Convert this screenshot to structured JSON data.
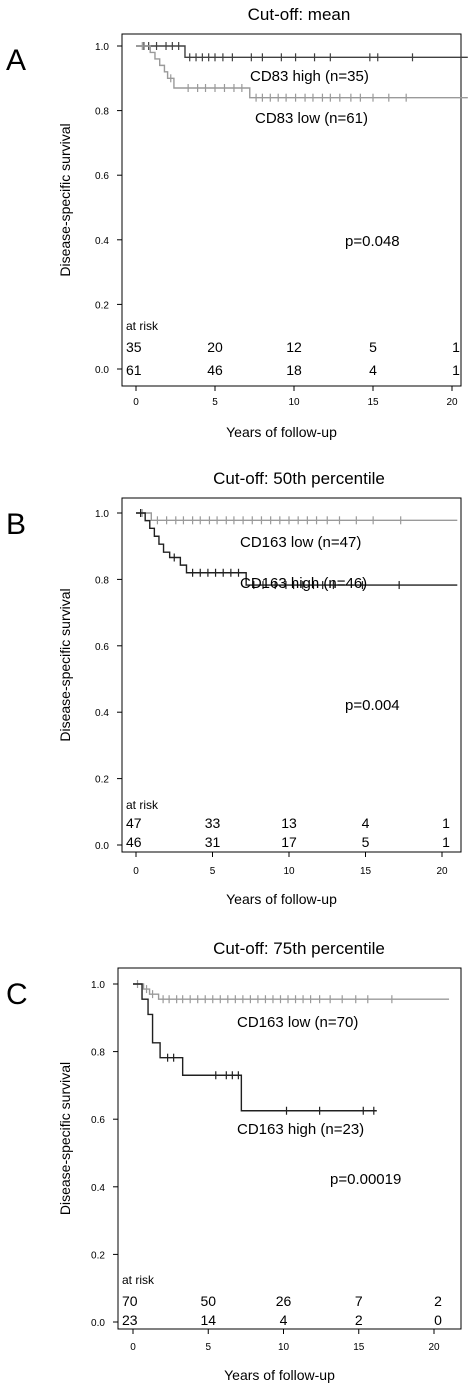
{
  "chart_data": [
    {
      "panel": "A",
      "type": "line",
      "title": "Cut-off: mean",
      "xlabel": "Years of follow-up",
      "ylabel": "Disease-specific survival",
      "xlim": [
        0,
        21
      ],
      "ylim": [
        -0.05,
        1.05
      ],
      "x_ticks": [
        0,
        5,
        10,
        15,
        20
      ],
      "y_ticks": [
        0.0,
        0.2,
        0.4,
        0.6,
        0.8,
        1.0
      ],
      "p_value": "p=0.048",
      "series": [
        {
          "name": "CD83 high (n=35)",
          "color": "#404040",
          "steps": [
            [
              0,
              1.0
            ],
            [
              3.1,
              0.965
            ],
            [
              21,
              0.965
            ]
          ],
          "censors": [
            [
              0.5,
              1.0
            ],
            [
              0.8,
              1.0
            ],
            [
              1.3,
              1.0
            ],
            [
              1.9,
              1.0
            ],
            [
              2.3,
              1.0
            ],
            [
              2.7,
              1.0
            ],
            [
              3.4,
              0.965
            ],
            [
              3.8,
              0.965
            ],
            [
              4.2,
              0.965
            ],
            [
              4.6,
              0.965
            ],
            [
              5.0,
              0.965
            ],
            [
              5.5,
              0.965
            ],
            [
              6.1,
              0.965
            ],
            [
              7.3,
              0.965
            ],
            [
              8.0,
              0.965
            ],
            [
              9.2,
              0.965
            ],
            [
              10.1,
              0.965
            ],
            [
              11.3,
              0.965
            ],
            [
              12.3,
              0.965
            ],
            [
              14.8,
              0.965
            ],
            [
              15.3,
              0.965
            ],
            [
              17.5,
              0.965
            ]
          ]
        },
        {
          "name": "CD83 low (n=61)",
          "color": "#9a9a9a",
          "steps": [
            [
              0,
              1.0
            ],
            [
              0.9,
              0.98
            ],
            [
              1.2,
              0.96
            ],
            [
              1.5,
              0.94
            ],
            [
              1.8,
              0.92
            ],
            [
              2.0,
              0.9
            ],
            [
              2.4,
              0.87
            ],
            [
              7.2,
              0.84
            ],
            [
              21,
              0.84
            ]
          ],
          "censors": [
            [
              0.4,
              1.0
            ],
            [
              2.2,
              0.9
            ],
            [
              3.3,
              0.87
            ],
            [
              3.9,
              0.87
            ],
            [
              4.4,
              0.87
            ],
            [
              5.0,
              0.87
            ],
            [
              5.6,
              0.87
            ],
            [
              6.2,
              0.87
            ],
            [
              6.7,
              0.87
            ],
            [
              7.6,
              0.84
            ],
            [
              8.0,
              0.84
            ],
            [
              8.5,
              0.84
            ],
            [
              9.0,
              0.84
            ],
            [
              9.5,
              0.84
            ],
            [
              10.1,
              0.84
            ],
            [
              10.7,
              0.84
            ],
            [
              11.2,
              0.84
            ],
            [
              11.8,
              0.84
            ],
            [
              12.3,
              0.84
            ],
            [
              12.9,
              0.84
            ],
            [
              13.6,
              0.84
            ],
            [
              14.2,
              0.84
            ],
            [
              15.0,
              0.84
            ],
            [
              16.0,
              0.84
            ],
            [
              17.1,
              0.84
            ]
          ]
        }
      ],
      "at_risk": {
        "label": "at risk",
        "times": [
          0,
          5,
          10,
          15,
          20
        ],
        "rows": [
          [
            "35",
            "20",
            "12",
            "5",
            "1"
          ],
          [
            "61",
            "46",
            "18",
            "4",
            "1"
          ]
        ]
      }
    },
    {
      "panel": "B",
      "type": "line",
      "title": "Cut-off: 50th percentile",
      "xlabel": "Years of follow-up",
      "ylabel": "Disease-specific survival",
      "xlim": [
        0,
        21
      ],
      "ylim": [
        -0.05,
        1.05
      ],
      "x_ticks": [
        0,
        5,
        10,
        15,
        20
      ],
      "y_ticks": [
        0.0,
        0.2,
        0.4,
        0.6,
        0.8,
        1.0
      ],
      "p_value": "p=0.004",
      "series": [
        {
          "name": "CD163 low (n=47)",
          "color": "#9a9a9a",
          "steps": [
            [
              0,
              1.0
            ],
            [
              1.0,
              0.978
            ],
            [
              21,
              0.978
            ]
          ],
          "censors": [
            [
              0.4,
              1.0
            ],
            [
              1.4,
              0.978
            ],
            [
              2.0,
              0.978
            ],
            [
              2.6,
              0.978
            ],
            [
              3.1,
              0.978
            ],
            [
              3.7,
              0.978
            ],
            [
              4.2,
              0.978
            ],
            [
              4.8,
              0.978
            ],
            [
              5.3,
              0.978
            ],
            [
              5.9,
              0.978
            ],
            [
              6.4,
              0.978
            ],
            [
              7.0,
              0.978
            ],
            [
              7.6,
              0.978
            ],
            [
              8.2,
              0.978
            ],
            [
              8.8,
              0.978
            ],
            [
              9.4,
              0.978
            ],
            [
              10.0,
              0.978
            ],
            [
              10.6,
              0.978
            ],
            [
              11.2,
              0.978
            ],
            [
              11.8,
              0.978
            ],
            [
              12.5,
              0.978
            ],
            [
              13.3,
              0.978
            ],
            [
              14.4,
              0.978
            ],
            [
              15.5,
              0.978
            ],
            [
              17.3,
              0.978
            ]
          ]
        },
        {
          "name": "CD163 high (n=46)",
          "color": "#202020",
          "steps": [
            [
              0,
              1.0
            ],
            [
              0.6,
              0.977
            ],
            [
              0.9,
              0.954
            ],
            [
              1.2,
              0.93
            ],
            [
              1.5,
              0.906
            ],
            [
              1.8,
              0.882
            ],
            [
              2.2,
              0.866
            ],
            [
              2.9,
              0.843
            ],
            [
              3.3,
              0.82
            ],
            [
              7.2,
              0.783
            ],
            [
              21,
              0.783
            ]
          ],
          "censors": [
            [
              0.3,
              1.0
            ],
            [
              2.5,
              0.866
            ],
            [
              3.7,
              0.82
            ],
            [
              4.2,
              0.82
            ],
            [
              4.7,
              0.82
            ],
            [
              5.2,
              0.82
            ],
            [
              5.7,
              0.82
            ],
            [
              6.2,
              0.82
            ],
            [
              6.7,
              0.82
            ],
            [
              7.7,
              0.783
            ],
            [
              8.3,
              0.783
            ],
            [
              9.1,
              0.783
            ],
            [
              9.8,
              0.783
            ],
            [
              10.3,
              0.783
            ],
            [
              10.9,
              0.783
            ],
            [
              11.6,
              0.783
            ],
            [
              12.2,
              0.783
            ],
            [
              12.9,
              0.783
            ],
            [
              14.8,
              0.783
            ],
            [
              17.2,
              0.783
            ]
          ]
        }
      ],
      "at_risk": {
        "label": "at risk",
        "times": [
          0,
          5,
          10,
          15,
          20
        ],
        "rows": [
          [
            "47",
            "33",
            "13",
            "4",
            "1"
          ],
          [
            "46",
            "31",
            "17",
            "5",
            "1"
          ]
        ]
      }
    },
    {
      "panel": "C",
      "type": "line",
      "title": "Cut-off: 75th percentile",
      "xlabel": "Years of follow-up",
      "ylabel": "Disease-specific survival",
      "xlim": [
        0,
        21
      ],
      "ylim": [
        -0.05,
        1.05
      ],
      "x_ticks": [
        0,
        5,
        10,
        15,
        20
      ],
      "y_ticks": [
        0.0,
        0.2,
        0.4,
        0.6,
        0.8,
        1.0
      ],
      "p_value": "p=0.00019",
      "series": [
        {
          "name": "CD163 low (n=70)",
          "color": "#9a9a9a",
          "steps": [
            [
              0,
              1.0
            ],
            [
              0.7,
              0.985
            ],
            [
              1.1,
              0.97
            ],
            [
              1.7,
              0.955
            ],
            [
              21,
              0.955
            ]
          ],
          "censors": [
            [
              0.3,
              1.0
            ],
            [
              0.9,
              0.985
            ],
            [
              1.3,
              0.97
            ],
            [
              2.0,
              0.955
            ],
            [
              2.4,
              0.955
            ],
            [
              2.9,
              0.955
            ],
            [
              3.3,
              0.955
            ],
            [
              3.8,
              0.955
            ],
            [
              4.3,
              0.955
            ],
            [
              4.8,
              0.955
            ],
            [
              5.3,
              0.955
            ],
            [
              5.8,
              0.955
            ],
            [
              6.3,
              0.955
            ],
            [
              6.8,
              0.955
            ],
            [
              7.3,
              0.955
            ],
            [
              7.8,
              0.955
            ],
            [
              8.3,
              0.955
            ],
            [
              8.8,
              0.955
            ],
            [
              9.3,
              0.955
            ],
            [
              9.8,
              0.955
            ],
            [
              10.3,
              0.955
            ],
            [
              10.8,
              0.955
            ],
            [
              11.3,
              0.955
            ],
            [
              11.8,
              0.955
            ],
            [
              12.4,
              0.955
            ],
            [
              13.1,
              0.955
            ],
            [
              13.9,
              0.955
            ],
            [
              14.8,
              0.955
            ],
            [
              15.6,
              0.955
            ],
            [
              17.2,
              0.955
            ]
          ]
        },
        {
          "name": "CD163 high (n=23)",
          "color": "#202020",
          "steps": [
            [
              0,
              1.0
            ],
            [
              0.6,
              0.955
            ],
            [
              1.0,
              0.91
            ],
            [
              1.3,
              0.826
            ],
            [
              1.8,
              0.782
            ],
            [
              3.3,
              0.73
            ],
            [
              7.2,
              0.625
            ],
            [
              16.2,
              0.625
            ]
          ],
          "censors": [
            [
              2.3,
              0.782
            ],
            [
              2.7,
              0.782
            ],
            [
              5.5,
              0.73
            ],
            [
              6.2,
              0.73
            ],
            [
              6.6,
              0.73
            ],
            [
              7.0,
              0.73
            ],
            [
              10.2,
              0.625
            ],
            [
              12.4,
              0.625
            ],
            [
              15.3,
              0.625
            ],
            [
              16.0,
              0.625
            ]
          ]
        }
      ],
      "at_risk": {
        "label": "at risk",
        "times": [
          0,
          5,
          10,
          15,
          20
        ],
        "rows": [
          [
            "70",
            "50",
            "26",
            "7",
            "2"
          ],
          [
            "23",
            "14",
            "4",
            "2",
            "0"
          ]
        ]
      }
    }
  ]
}
